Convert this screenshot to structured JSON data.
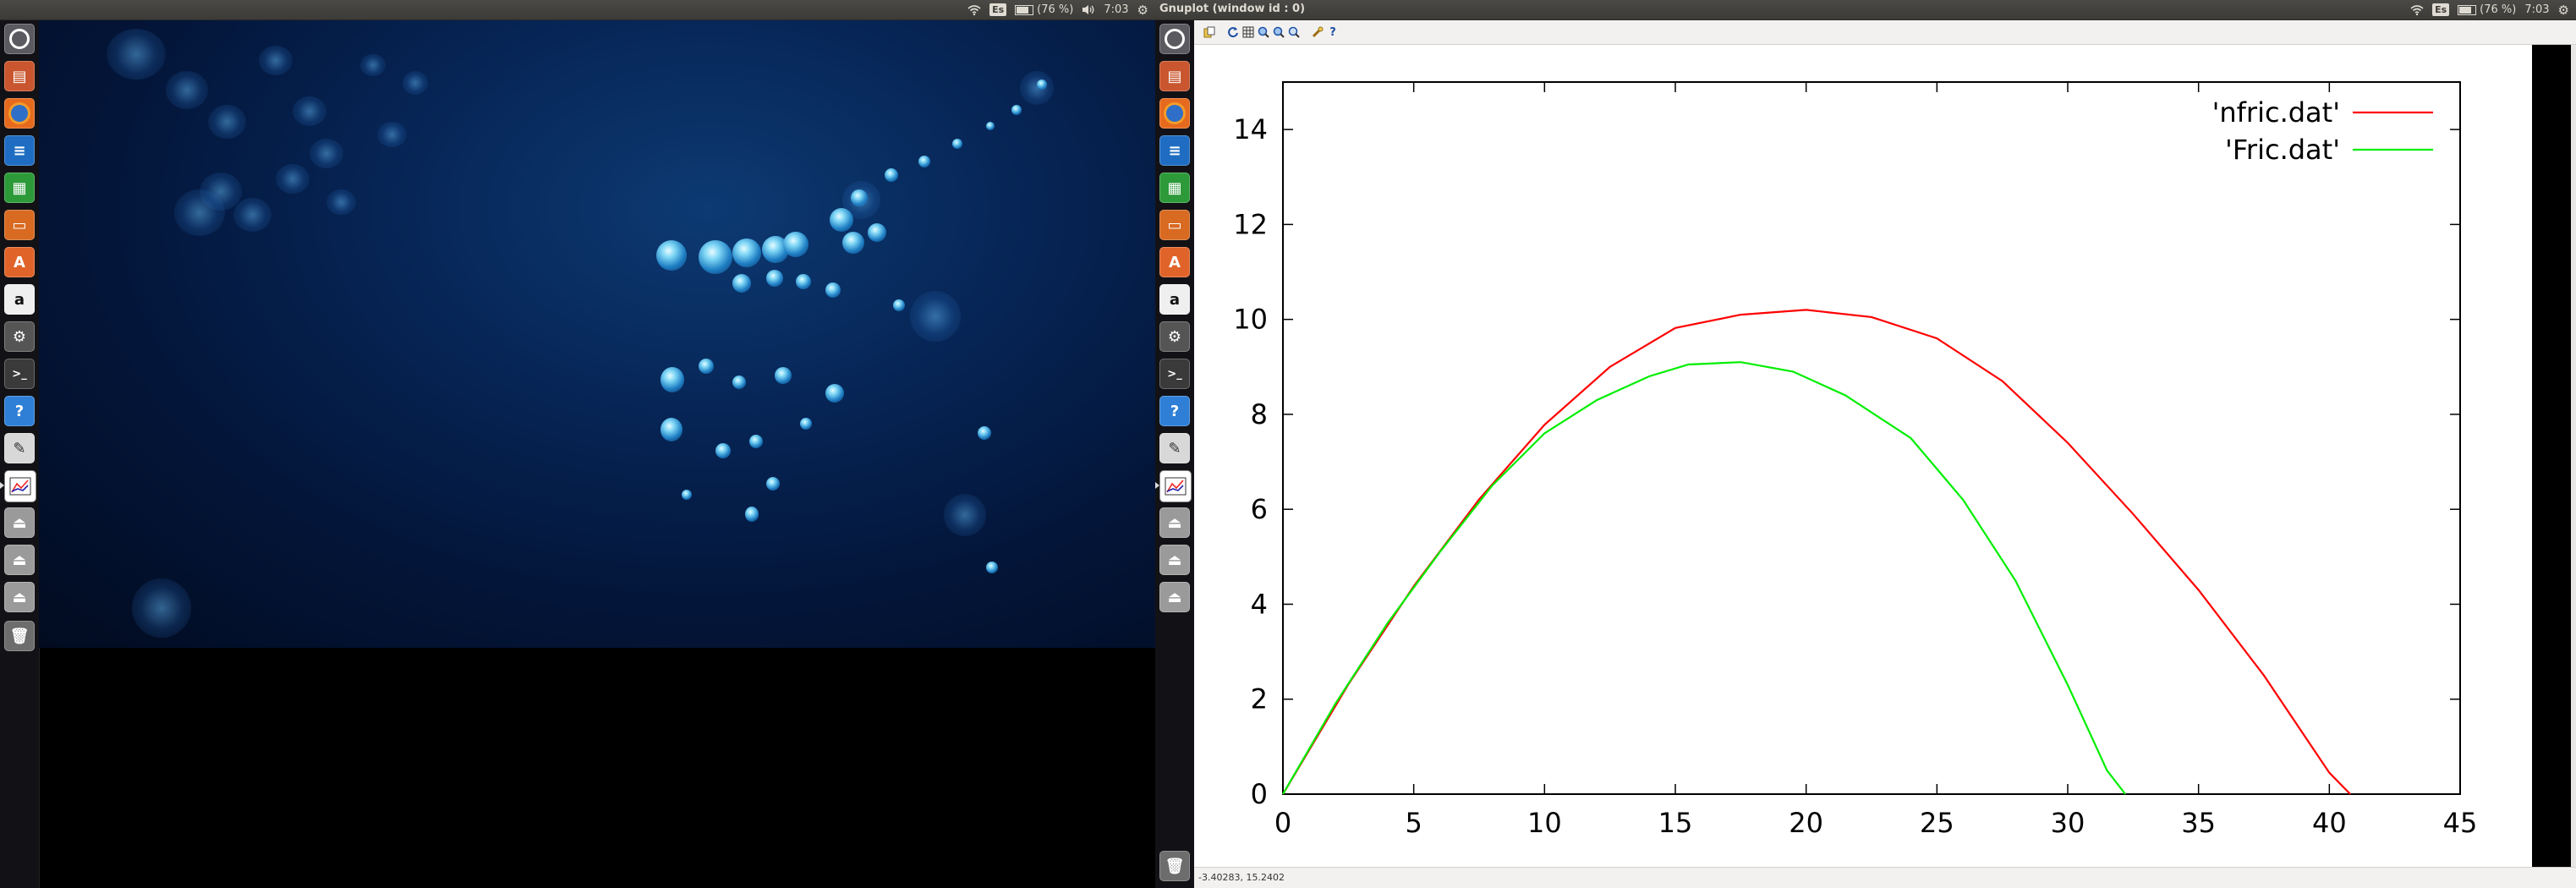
{
  "left_panel": {
    "keyboard": "Es",
    "battery": "(76 %)",
    "battery_level": 0.76,
    "clock": "7:03"
  },
  "right_panel": {
    "window_title": "Gnuplot (window id : 0)",
    "keyboard": "Es",
    "battery": "(76 %)",
    "battery_level": 0.76,
    "clock": "7:03"
  },
  "launcher": {
    "items": [
      "dash-home",
      "files",
      "firefox",
      "writer",
      "calc",
      "impress",
      "software-center",
      "amazon",
      "system-settings",
      "terminal",
      "help",
      "text-editor",
      "gnuplot",
      "drive",
      "drive",
      "drive",
      "trash"
    ]
  },
  "gnuplot_toolbar": {
    "icons": [
      "copy-clipboard",
      "replot",
      "grid",
      "previous-zoom",
      "next-zoom",
      "autoscale",
      "options",
      "help"
    ],
    "help_glyph": "?"
  },
  "status": {
    "coordinates": "-3.40283,  15.2402"
  },
  "chart_data": {
    "type": "line",
    "title": "",
    "xlabel": "",
    "ylabel": "",
    "xlim": [
      0,
      45
    ],
    "ylim": [
      0,
      15
    ],
    "x_ticks": [
      "0",
      "5",
      "10",
      "15",
      "20",
      "25",
      "30",
      "35",
      "40",
      "45"
    ],
    "y_ticks": [
      "0",
      "2",
      "4",
      "6",
      "8",
      "10",
      "12",
      "14"
    ],
    "legend_position": "top-right",
    "series": [
      {
        "name": "'nfric.dat'",
        "color": "#ff0000",
        "x": [
          0,
          2.5,
          5,
          7.5,
          10,
          12.5,
          15,
          17.5,
          20,
          22.5,
          25,
          27.5,
          30,
          32.5,
          35,
          37.5,
          40,
          40.8
        ],
        "y": [
          0,
          2.31,
          4.38,
          6.21,
          7.78,
          9.0,
          9.82,
          10.1,
          10.2,
          10.05,
          9.6,
          8.7,
          7.4,
          5.9,
          4.3,
          2.5,
          0.45,
          0
        ]
      },
      {
        "name": "'Fric.dat'",
        "color": "#00ee00",
        "x": [
          0,
          2,
          4,
          6,
          8,
          10,
          12,
          14,
          15.5,
          17.5,
          19.5,
          21.5,
          24,
          26,
          28,
          30,
          31.5,
          32.2
        ],
        "y": [
          0,
          1.9,
          3.6,
          5.1,
          6.5,
          7.6,
          8.3,
          8.8,
          9.05,
          9.1,
          8.9,
          8.4,
          7.5,
          6.2,
          4.5,
          2.3,
          0.5,
          0
        ]
      }
    ]
  }
}
